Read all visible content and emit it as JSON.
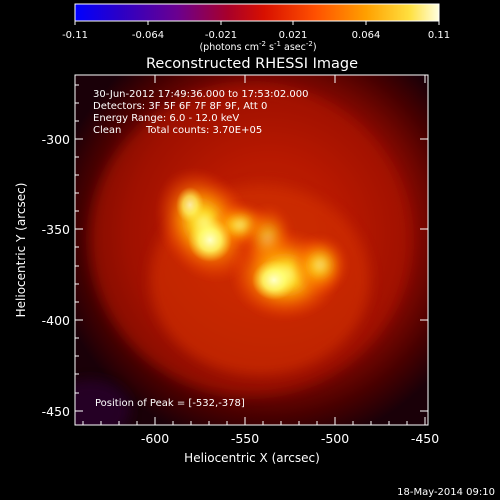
{
  "colorbar": {
    "tick_labels": [
      "-0.11",
      "-0.064",
      "-0.021",
      "0.021",
      "0.064",
      "0.11"
    ],
    "units_prefix": "(photons cm",
    "units_exp1": "-2",
    "units_mid1": " s",
    "units_exp2": "-1",
    "units_mid2": " asec",
    "units_exp3": "-2",
    "units_suffix": ")"
  },
  "title": "Reconstructed RHESSI Image",
  "annotations": {
    "time_range": "30-Jun-2012 17:49:36.000 to 17:53:02.000",
    "detectors": "Detectors: 3F 5F 6F 7F 8F 9F, Att 0",
    "energy": "Energy Range: 6.0 - 12.0 keV",
    "algorithm": "Clean",
    "total_counts": "Total counts: 3.70E+05",
    "peak": "Position of Peak = [-532,-378]"
  },
  "axes": {
    "xlabel": "Heliocentric X (arcsec)",
    "ylabel": "Heliocentric Y (arcsec)",
    "xticks": [
      -600,
      -550,
      -500,
      -450
    ],
    "yticks": [
      -300,
      -350,
      -400,
      -450
    ],
    "xrange": [
      -645,
      -450
    ],
    "yrange": [
      -455,
      -262
    ]
  },
  "footer": {
    "date": "18-May-2014 09:10"
  },
  "colors": {
    "low": "#000000",
    "mid": "#c31800",
    "high": "#ffff60",
    "peak": "#ffffff"
  }
}
